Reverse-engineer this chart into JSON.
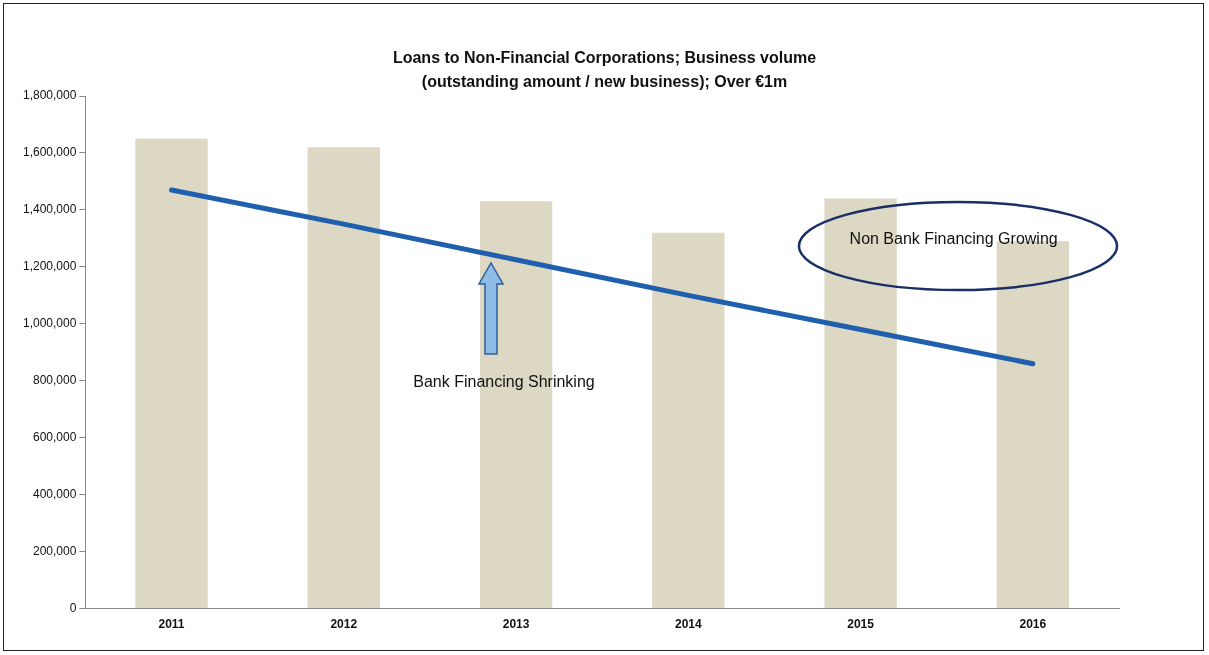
{
  "chart_data": {
    "type": "bar",
    "title": "Loans to Non-Financial Corporations; Business volume (outstanding amount / new business); Over €1m",
    "categories": [
      "2011",
      "2012",
      "2013",
      "2014",
      "2015",
      "2016"
    ],
    "series": [
      {
        "color": "#ddd8c4",
        "values": [
          1650000,
          1620000,
          1430000,
          1320000,
          1440000,
          1290000
        ]
      },
      {
        "type": "line",
        "color": "#1f5fae",
        "values": [
          1470000,
          1350000,
          1225000,
          1100000,
          980000,
          860000
        ]
      }
    ],
    "ylim": [
      0,
      1800000
    ],
    "yticks": [
      0,
      {
        "value": 200000,
        "label": "200,000"
      },
      {
        "value": 400000,
        "label": "400,000"
      },
      {
        "value": 600000,
        "label": "600,000"
      },
      {
        "value": 800000,
        "label": "800,000"
      },
      {
        "value": 1000000,
        "label": "1,000,000"
      },
      {
        "value": 1200000,
        "label": "1,200,000"
      },
      {
        "value": 1400000,
        "label": "1,400,000"
      },
      {
        "value": 1600000,
        "label": "1,600,000"
      },
      {
        "value": 1800000,
        "label": "1,800,000"
      }
    ],
    "grid": false,
    "legend": false,
    "annotations": [
      "Bank Financing Shrinking",
      "Non Bank Financing Growing"
    ]
  }
}
